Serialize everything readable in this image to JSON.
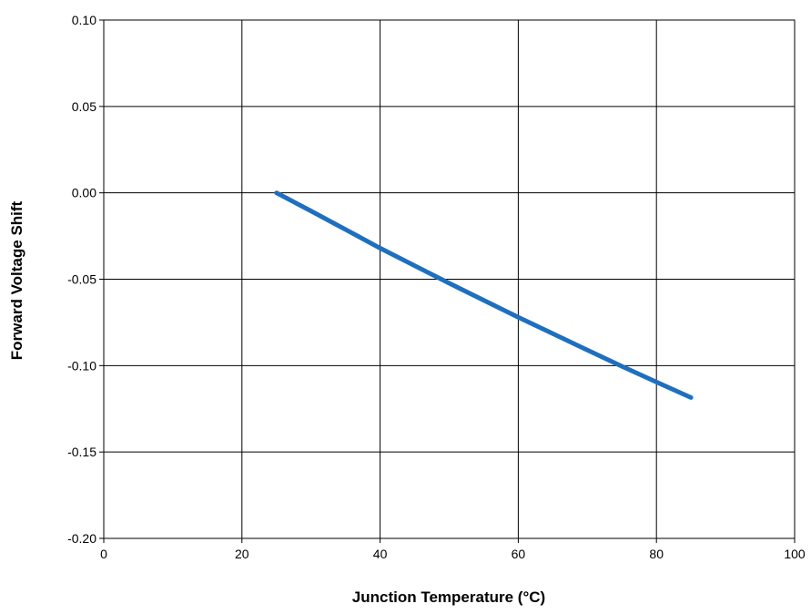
{
  "chart_data": {
    "type": "line",
    "title": "",
    "xlabel": "Junction Temperature (°C)",
    "ylabel": "Forward Voltage Shift",
    "xlim": [
      0,
      100
    ],
    "ylim": [
      -0.2,
      0.1
    ],
    "x_ticks": [
      "0",
      "20",
      "40",
      "60",
      "80",
      "100"
    ],
    "y_ticks": [
      "0.10",
      "0.05",
      "0.00",
      "-0.05",
      "-0.10",
      "-0.15",
      "-0.20"
    ],
    "grid": true,
    "legend": "none",
    "series": [
      {
        "color": "#1f6fbf",
        "x": [
          25,
          30,
          35,
          40,
          45,
          50,
          55,
          60,
          65,
          70,
          75,
          80,
          85
        ],
        "y": [
          0.0,
          -0.0105,
          -0.0212,
          -0.032,
          -0.0422,
          -0.0523,
          -0.0622,
          -0.072,
          -0.0815,
          -0.091,
          -0.1004,
          -0.1095,
          -0.1185
        ]
      }
    ]
  }
}
